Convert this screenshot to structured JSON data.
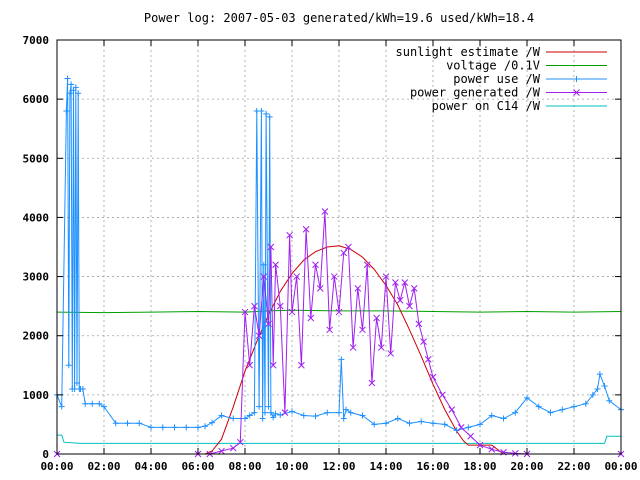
{
  "chart_data": {
    "type": "line",
    "title": "Power log: 2007-05-03 generated/kWh=19.6 used/kWh=18.4",
    "xlabel": "",
    "ylabel": "",
    "xlim": [
      0,
      24
    ],
    "ylim": [
      0,
      7000
    ],
    "grid": true,
    "legend_position": "top-right",
    "x_tick_labels": [
      "00:00",
      "02:00",
      "04:00",
      "06:00",
      "08:00",
      "10:00",
      "12:00",
      "14:00",
      "16:00",
      "18:00",
      "20:00",
      "22:00",
      "00:00"
    ],
    "x_tick_values": [
      0,
      2,
      4,
      6,
      8,
      10,
      12,
      14,
      16,
      18,
      20,
      22,
      24
    ],
    "y_tick_values": [
      0,
      1000,
      2000,
      3000,
      4000,
      5000,
      6000,
      7000
    ],
    "series": [
      {
        "name": "sunlight estimate /W",
        "color": "#cc0000",
        "marker": "none",
        "x": [
          0,
          6.3,
          6.6,
          7,
          7.5,
          8,
          8.5,
          9,
          9.5,
          10,
          10.5,
          11,
          11.5,
          12,
          12.5,
          13,
          13.5,
          14,
          14.5,
          15,
          15.5,
          16,
          16.5,
          17,
          17.3,
          17.5,
          17.8,
          18.5,
          19,
          24
        ],
        "y": [
          0,
          0,
          50,
          250,
          800,
          1400,
          1900,
          2350,
          2750,
          3050,
          3280,
          3420,
          3500,
          3520,
          3460,
          3330,
          3120,
          2850,
          2520,
          2100,
          1650,
          1180,
          750,
          390,
          220,
          150,
          150,
          150,
          0,
          0
        ]
      },
      {
        "name": "voltage /0.1V",
        "color": "#00a000",
        "marker": "none",
        "x": [
          0,
          2,
          4,
          6,
          8,
          9,
          10,
          12,
          14,
          16,
          18,
          20,
          22,
          24
        ],
        "y": [
          2400,
          2390,
          2400,
          2410,
          2400,
          2420,
          2430,
          2420,
          2420,
          2410,
          2400,
          2410,
          2400,
          2410
        ]
      },
      {
        "name": "power use /W",
        "color": "#1e90ff",
        "marker": "+",
        "x": [
          0,
          0.2,
          0.4,
          0.45,
          0.5,
          0.55,
          0.6,
          0.65,
          0.7,
          0.75,
          0.8,
          0.85,
          0.9,
          0.95,
          1,
          1.1,
          1.2,
          1.5,
          1.8,
          2,
          2.5,
          3,
          3.5,
          4,
          4.5,
          5,
          5.5,
          6,
          6.3,
          6.6,
          7,
          7.5,
          8,
          8.2,
          8.4,
          8.5,
          8.6,
          8.7,
          8.75,
          8.8,
          8.85,
          8.9,
          9,
          9.05,
          9.1,
          9.2,
          9.3,
          9.5,
          10,
          10.5,
          11,
          11.5,
          12,
          12.1,
          12.2,
          12.3,
          12.5,
          13,
          13.5,
          14,
          14.5,
          15,
          15.5,
          16,
          16.5,
          17,
          17.5,
          18,
          18.5,
          19,
          19.5,
          20,
          20.5,
          21,
          21.5,
          22,
          22.5,
          22.8,
          23,
          23.1,
          23.3,
          23.5,
          24
        ],
        "y": [
          1000,
          800,
          5800,
          6350,
          1500,
          6100,
          6250,
          1100,
          6150,
          1100,
          6200,
          1200,
          6100,
          1100,
          1100,
          1100,
          850,
          850,
          850,
          800,
          520,
          520,
          520,
          450,
          450,
          450,
          450,
          450,
          470,
          530,
          650,
          600,
          600,
          650,
          700,
          5800,
          800,
          5800,
          600,
          3200,
          700,
          5750,
          800,
          5700,
          700,
          620,
          680,
          660,
          720,
          650,
          640,
          700,
          700,
          1600,
          600,
          750,
          700,
          650,
          500,
          520,
          600,
          520,
          550,
          520,
          500,
          400,
          450,
          500,
          650,
          600,
          700,
          950,
          800,
          700,
          750,
          800,
          850,
          1000,
          1100,
          1350,
          1150,
          900,
          750
        ]
      },
      {
        "name": "power generated /W",
        "color": "#a020f0",
        "marker": "x",
        "x": [
          0,
          6,
          6.5,
          7,
          7.5,
          7.8,
          8,
          8.2,
          8.4,
          8.6,
          8.8,
          9,
          9.1,
          9.2,
          9.3,
          9.5,
          9.7,
          9.9,
          10,
          10.2,
          10.4,
          10.6,
          10.8,
          11,
          11.2,
          11.4,
          11.6,
          11.8,
          12,
          12.2,
          12.4,
          12.6,
          12.8,
          13,
          13.2,
          13.4,
          13.6,
          13.8,
          14,
          14.2,
          14.4,
          14.6,
          14.8,
          15,
          15.2,
          15.4,
          15.6,
          15.8,
          16,
          16.4,
          16.8,
          17.2,
          17.6,
          18,
          18.5,
          19,
          19.5,
          20,
          24
        ],
        "y": [
          0,
          0,
          0,
          50,
          100,
          200,
          2400,
          1500,
          2500,
          2000,
          3000,
          2200,
          3500,
          1500,
          3200,
          2500,
          700,
          3700,
          2400,
          3000,
          1500,
          3800,
          2300,
          3200,
          2800,
          4100,
          2100,
          3000,
          2400,
          3400,
          3500,
          1800,
          2800,
          2100,
          3200,
          1200,
          2300,
          1800,
          3000,
          1700,
          2900,
          2600,
          2900,
          2500,
          2800,
          2200,
          1900,
          1600,
          1300,
          1000,
          750,
          450,
          300,
          150,
          80,
          30,
          10,
          0,
          0
        ]
      },
      {
        "name": "power on C14 /W",
        "color": "#00c0c0",
        "marker": "none",
        "x": [
          0,
          0.2,
          0.3,
          1,
          2,
          4,
          6,
          8,
          10,
          12,
          14,
          16,
          18,
          20,
          22,
          23.3,
          23.4,
          24
        ],
        "y": [
          320,
          320,
          200,
          180,
          180,
          180,
          180,
          180,
          180,
          180,
          180,
          180,
          180,
          180,
          180,
          180,
          300,
          300
        ]
      }
    ]
  }
}
